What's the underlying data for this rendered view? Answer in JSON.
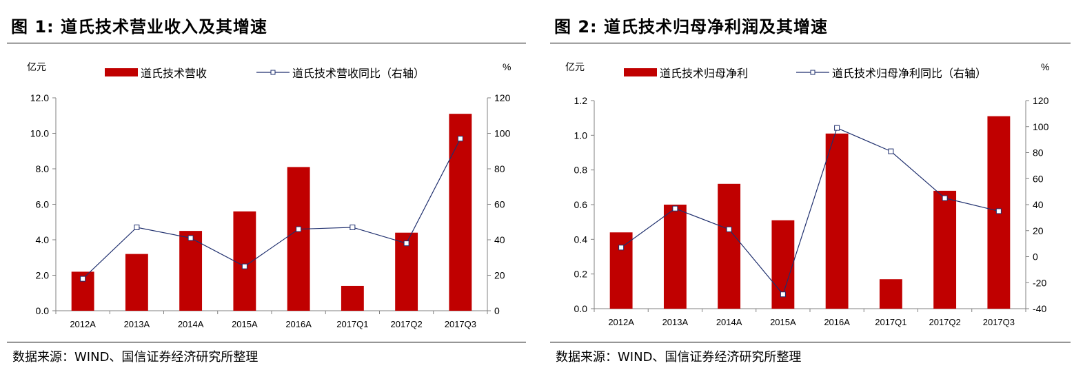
{
  "colors": {
    "bar": "#c00000",
    "line": "#1f2f6e",
    "axis": "#808080"
  },
  "charts": [
    {
      "heading": "图 1:  道氏技术营业收入及其增速",
      "source": "数据来源：WIND、国信证券经济研究所整理",
      "left_unit": "亿元",
      "right_unit": "%",
      "chart_data": {
        "type": "bar",
        "categories": [
          "2012A",
          "2013A",
          "2014A",
          "2015A",
          "2016A",
          "2017Q1",
          "2017Q2",
          "2017Q3"
        ],
        "series": [
          {
            "name": "道氏技术营收",
            "type": "bar",
            "axis": "left",
            "values": [
              2.2,
              3.2,
              4.5,
              5.6,
              8.1,
              1.4,
              4.4,
              11.1
            ]
          },
          {
            "name": "道氏技术营收同比（右轴）",
            "type": "line",
            "axis": "right",
            "values": [
              18,
              47,
              41,
              25,
              46,
              47,
              38,
              97
            ]
          }
        ],
        "left_ylim": [
          0,
          12
        ],
        "left_ticks": [
          "0.0",
          "2.0",
          "4.0",
          "6.0",
          "8.0",
          "10.0",
          "12.0"
        ],
        "right_ylim": [
          0,
          120
        ],
        "right_ticks": [
          "0",
          "20",
          "40",
          "60",
          "80",
          "100",
          "120"
        ],
        "legend_position": "top"
      }
    },
    {
      "heading": "图 2:  道氏技术归母净利润及其增速",
      "source": "数据来源：WIND、国信证券经济研究所整理",
      "left_unit": "亿元",
      "right_unit": "%",
      "chart_data": {
        "type": "bar",
        "categories": [
          "2012A",
          "2013A",
          "2014A",
          "2015A",
          "2016A",
          "2017Q1",
          "2017Q2",
          "2017Q3"
        ],
        "series": [
          {
            "name": "道氏技术归母净利",
            "type": "bar",
            "axis": "left",
            "values": [
              0.44,
              0.6,
              0.72,
              0.51,
              1.01,
              0.17,
              0.68,
              1.11
            ]
          },
          {
            "name": "道氏技术归母净利同比（右轴）",
            "type": "line",
            "axis": "right",
            "values": [
              7,
              37,
              21,
              -29,
              99,
              81,
              45,
              35
            ]
          }
        ],
        "left_ylim": [
          0,
          1.2
        ],
        "left_ticks": [
          "0.0",
          "0.2",
          "0.4",
          "0.6",
          "0.8",
          "1.0",
          "1.2"
        ],
        "right_ylim": [
          -40,
          120
        ],
        "right_ticks": [
          "-40",
          "-20",
          "0",
          "20",
          "40",
          "60",
          "80",
          "100",
          "120"
        ],
        "legend_position": "top"
      }
    }
  ]
}
